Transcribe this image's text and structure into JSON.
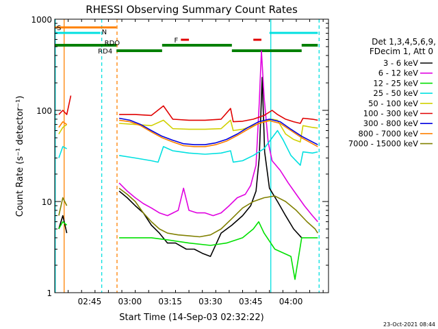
{
  "chart_data": {
    "type": "line",
    "title": "RHESSI Observing Summary Count Rates",
    "ylabel": "Count Rate (s⁻¹ detector⁻¹)",
    "xlabel": "Start Time (14-Sep-03 02:32:22)",
    "yscale": "log",
    "ylim": [
      1,
      1000
    ],
    "xlim_minutes": [
      0,
      102
    ],
    "x_ticks": [
      {
        "minute": 13,
        "label": "02:45"
      },
      {
        "minute": 28,
        "label": "03:00"
      },
      {
        "minute": 43,
        "label": "03:15"
      },
      {
        "minute": 58,
        "label": "03:30"
      },
      {
        "minute": 73,
        "label": "03:45"
      },
      {
        "minute": 88,
        "label": "04:00"
      }
    ],
    "y_ticks": [
      {
        "value": 1,
        "label": "1"
      },
      {
        "value": 10,
        "label": "10"
      },
      {
        "value": 100,
        "label": "100"
      },
      {
        "value": 1000,
        "label": "1000"
      }
    ],
    "legend": {
      "position": "right",
      "header": [
        "Det 1,3,4,5,6,9,",
        "FDecim 1, Att 0"
      ],
      "entries": [
        {
          "label": "3 - 6 keV",
          "color": "#000000"
        },
        {
          "label": "6 - 12 keV",
          "color": "#e000e0"
        },
        {
          "label": "12 - 25 keV",
          "color": "#00e000"
        },
        {
          "label": "25 - 50 keV",
          "color": "#00e0e0"
        },
        {
          "label": "50 - 100 keV",
          "color": "#d0d000"
        },
        {
          "label": "100 - 300 keV",
          "color": "#e00000"
        },
        {
          "label": "300 - 800 keV",
          "color": "#0000e0"
        },
        {
          "label": "800 - 7000 keV",
          "color": "#ff8000"
        },
        {
          "label": "7000 - 15000 keV",
          "color": "#808000"
        }
      ]
    },
    "flag_bars": [
      {
        "label": "S",
        "color": "#ff8000",
        "segments": [
          [
            0,
            23
          ]
        ]
      },
      {
        "label": "N",
        "color": "#00e0e0",
        "segments": [
          [
            0,
            17
          ],
          [
            80,
            98
          ]
        ]
      },
      {
        "label": "F",
        "color": "#e00000",
        "segments": [
          [
            47,
            50
          ],
          [
            74,
            77
          ]
        ]
      },
      {
        "label": "RDO",
        "color": "#008000",
        "segments": [
          [
            0,
            23
          ],
          [
            40,
            66
          ],
          [
            92,
            98
          ]
        ]
      },
      {
        "label": "RD4",
        "color": "#008000",
        "segments": [
          [
            23,
            40
          ],
          [
            66,
            92
          ]
        ]
      }
    ],
    "vlines": [
      {
        "minute": 0.2,
        "color": "#00e0e0",
        "style": "solid"
      },
      {
        "minute": 3.5,
        "color": "#ff8000",
        "style": "solid"
      },
      {
        "minute": 17.5,
        "color": "#00e0e0",
        "style": "dashed"
      },
      {
        "minute": 23.2,
        "color": "#ff8000",
        "style": "dashed"
      },
      {
        "minute": 80.5,
        "color": "#00e0e0",
        "style": "solid"
      },
      {
        "minute": 98.5,
        "color": "#00e0e0",
        "style": "dashed"
      }
    ],
    "series": [
      {
        "name": "3 - 6 keV",
        "color": "#000000",
        "data": [
          [
            1.5,
            5
          ],
          [
            3,
            7
          ],
          [
            4.5,
            4.5
          ],
          [
            24,
            13
          ],
          [
            27,
            11
          ],
          [
            30,
            9
          ],
          [
            33,
            7.5
          ],
          [
            36,
            5.5
          ],
          [
            39,
            4.5
          ],
          [
            42,
            3.5
          ],
          [
            45,
            3.5
          ],
          [
            49,
            3
          ],
          [
            52,
            3
          ],
          [
            55,
            2.7
          ],
          [
            58,
            2.5
          ],
          [
            62,
            4.5
          ],
          [
            66,
            5.5
          ],
          [
            70,
            7
          ],
          [
            73,
            9
          ],
          [
            75,
            13
          ],
          [
            76.2,
            30
          ],
          [
            77.3,
            230
          ],
          [
            78.2,
            35
          ],
          [
            80,
            14
          ],
          [
            83,
            10
          ],
          [
            86,
            7
          ],
          [
            89,
            5
          ],
          [
            92,
            4
          ]
        ]
      },
      {
        "name": "6 - 12 keV",
        "color": "#e000e0",
        "data": [
          [
            24,
            16
          ],
          [
            27,
            13
          ],
          [
            30,
            11
          ],
          [
            33,
            9.5
          ],
          [
            36,
            8.5
          ],
          [
            39,
            7.5
          ],
          [
            42,
            7
          ],
          [
            46,
            8
          ],
          [
            48,
            14
          ],
          [
            50,
            8
          ],
          [
            53,
            7.5
          ],
          [
            56,
            7.5
          ],
          [
            59,
            7
          ],
          [
            62,
            7.5
          ],
          [
            65,
            9
          ],
          [
            68,
            11
          ],
          [
            71,
            12
          ],
          [
            73,
            15
          ],
          [
            75,
            25
          ],
          [
            76.2,
            120
          ],
          [
            77,
            450
          ],
          [
            78,
            140
          ],
          [
            79.5,
            45
          ],
          [
            81,
            28
          ],
          [
            84,
            22
          ],
          [
            87,
            16
          ],
          [
            90,
            12
          ],
          [
            93,
            9
          ],
          [
            96,
            7
          ],
          [
            98,
            6
          ]
        ]
      },
      {
        "name": "12 - 25 keV",
        "color": "#00e000",
        "data": [
          [
            1.5,
            5
          ],
          [
            3,
            6
          ],
          [
            4.5,
            5.5
          ],
          [
            24,
            4
          ],
          [
            30,
            4
          ],
          [
            36,
            4
          ],
          [
            42,
            3.8
          ],
          [
            50,
            3.5
          ],
          [
            58,
            3.3
          ],
          [
            64,
            3.5
          ],
          [
            70,
            4
          ],
          [
            74,
            5
          ],
          [
            76,
            6
          ],
          [
            78,
            4.5
          ],
          [
            82,
            3
          ],
          [
            88,
            2.5
          ],
          [
            89.5,
            1.4
          ],
          [
            92,
            4
          ],
          [
            96,
            4
          ],
          [
            98,
            4
          ]
        ]
      },
      {
        "name": "25 - 50 keV",
        "color": "#00e0e0",
        "data": [
          [
            1.5,
            30
          ],
          [
            3,
            40
          ],
          [
            4.5,
            38
          ],
          [
            24,
            32
          ],
          [
            30,
            30
          ],
          [
            36,
            28
          ],
          [
            38.5,
            27
          ],
          [
            40.5,
            40
          ],
          [
            44,
            36
          ],
          [
            50,
            34
          ],
          [
            56,
            33
          ],
          [
            62,
            34
          ],
          [
            65.5,
            36
          ],
          [
            66.5,
            27
          ],
          [
            70,
            28
          ],
          [
            74,
            32
          ],
          [
            78,
            38
          ],
          [
            81,
            50
          ],
          [
            83,
            60
          ],
          [
            85,
            48
          ],
          [
            88,
            32
          ],
          [
            91.5,
            25
          ],
          [
            92.5,
            35
          ],
          [
            96,
            34
          ],
          [
            98,
            35
          ]
        ]
      },
      {
        "name": "50 - 100 keV",
        "color": "#d0d000",
        "data": [
          [
            1.5,
            55
          ],
          [
            3,
            65
          ],
          [
            4.5,
            70
          ],
          [
            24,
            72
          ],
          [
            30,
            70
          ],
          [
            36,
            68
          ],
          [
            40.5,
            78
          ],
          [
            44,
            63
          ],
          [
            50,
            62
          ],
          [
            56,
            62
          ],
          [
            62,
            63
          ],
          [
            65.5,
            78
          ],
          [
            66.5,
            60
          ],
          [
            70,
            62
          ],
          [
            74,
            68
          ],
          [
            78,
            75
          ],
          [
            81,
            80
          ],
          [
            83,
            78
          ],
          [
            86,
            55
          ],
          [
            89,
            48
          ],
          [
            91.5,
            45
          ],
          [
            92.5,
            68
          ],
          [
            96,
            65
          ],
          [
            98,
            64
          ]
        ]
      },
      {
        "name": "100 - 300 keV",
        "color": "#e00000",
        "data": [
          [
            1.5,
            90
          ],
          [
            3,
            100
          ],
          [
            4.5,
            90
          ],
          [
            6,
            145
          ],
          [
            24,
            90
          ],
          [
            30,
            90
          ],
          [
            36,
            88
          ],
          [
            40.5,
            112
          ],
          [
            44,
            80
          ],
          [
            50,
            78
          ],
          [
            56,
            78
          ],
          [
            62,
            80
          ],
          [
            65.5,
            105
          ],
          [
            66.5,
            75
          ],
          [
            70,
            76
          ],
          [
            74,
            80
          ],
          [
            78,
            88
          ],
          [
            81,
            100
          ],
          [
            83,
            90
          ],
          [
            86,
            80
          ],
          [
            89,
            75
          ],
          [
            91.5,
            72
          ],
          [
            92.5,
            82
          ],
          [
            96,
            80
          ],
          [
            98,
            78
          ]
        ]
      },
      {
        "name": "300 - 800 keV",
        "color": "#0000e0",
        "data": [
          [
            24,
            82
          ],
          [
            28,
            78
          ],
          [
            32,
            70
          ],
          [
            36,
            60
          ],
          [
            40,
            52
          ],
          [
            44,
            47
          ],
          [
            48,
            43
          ],
          [
            52,
            42
          ],
          [
            56,
            42
          ],
          [
            60,
            44
          ],
          [
            64,
            48
          ],
          [
            68,
            55
          ],
          [
            72,
            65
          ],
          [
            76,
            75
          ],
          [
            80,
            80
          ],
          [
            84,
            75
          ],
          [
            88,
            62
          ],
          [
            92,
            52
          ],
          [
            96,
            45
          ],
          [
            98,
            42
          ]
        ]
      },
      {
        "name": "800 - 7000 keV",
        "color": "#ff8000",
        "data": [
          [
            1.5,
            65
          ],
          [
            3,
            75
          ],
          [
            4.5,
            70
          ],
          [
            24,
            78
          ],
          [
            28,
            75
          ],
          [
            32,
            68
          ],
          [
            36,
            58
          ],
          [
            40,
            50
          ],
          [
            44,
            45
          ],
          [
            48,
            41
          ],
          [
            52,
            40
          ],
          [
            56,
            40
          ],
          [
            60,
            42
          ],
          [
            64,
            46
          ],
          [
            68,
            53
          ],
          [
            72,
            62
          ],
          [
            76,
            72
          ],
          [
            80,
            77
          ],
          [
            84,
            72
          ],
          [
            88,
            60
          ],
          [
            92,
            50
          ],
          [
            96,
            43
          ],
          [
            98,
            40
          ]
        ]
      },
      {
        "name": "7000 - 15000 keV",
        "color": "#808000",
        "data": [
          [
            1.5,
            7
          ],
          [
            3,
            11
          ],
          [
            4.5,
            9
          ],
          [
            24,
            14
          ],
          [
            27,
            12
          ],
          [
            30,
            10
          ],
          [
            33,
            7.5
          ],
          [
            36,
            6
          ],
          [
            39,
            5
          ],
          [
            42,
            4.5
          ],
          [
            46,
            4.3
          ],
          [
            50,
            4.2
          ],
          [
            54,
            4.1
          ],
          [
            58,
            4.3
          ],
          [
            62,
            5
          ],
          [
            66,
            6.5
          ],
          [
            70,
            8.5
          ],
          [
            74,
            10
          ],
          [
            78,
            11
          ],
          [
            82,
            11.5
          ],
          [
            86,
            10
          ],
          [
            90,
            8
          ],
          [
            94,
            6
          ],
          [
            97,
            5
          ],
          [
            98,
            4.5
          ]
        ]
      }
    ]
  },
  "footer": {
    "timestamp": "23-Oct-2021 08:44"
  }
}
